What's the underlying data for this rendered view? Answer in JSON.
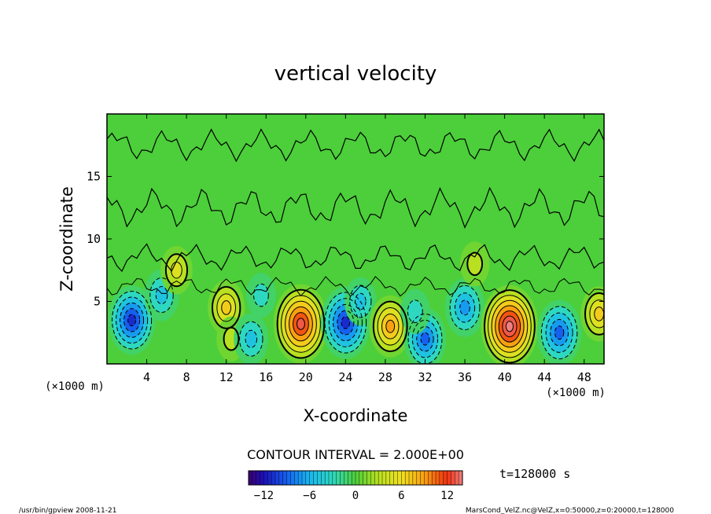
{
  "chart_data": {
    "type": "heatmap",
    "title": "vertical velocity",
    "xlabel": "X-coordinate",
    "ylabel": "Z-coordinate",
    "x_unit_left": "(×1000 m)",
    "x_unit_right": "(×1000 m)",
    "xlim": [
      0,
      50
    ],
    "ylim": [
      0,
      20
    ],
    "x_ticks": [
      4,
      8,
      12,
      16,
      20,
      24,
      28,
      32,
      36,
      40,
      44,
      48
    ],
    "y_ticks": [
      5,
      10,
      15
    ],
    "contour_interval_label": "CONTOUR INTERVAL = 2.000E+00",
    "time_label": "t=128000 s",
    "colorbar": {
      "min": -14,
      "max": 14,
      "tick_values": [
        -12,
        -6,
        0,
        6,
        12
      ],
      "tick_labels": [
        "−12",
        "−6",
        "0",
        "6",
        "12"
      ]
    },
    "cells": [
      {
        "x": 2.5,
        "z": 3.5,
        "value": -10
      },
      {
        "x": 5.5,
        "z": 5.5,
        "value": -5
      },
      {
        "x": 7.0,
        "z": 7.5,
        "value": 4
      },
      {
        "x": 12.0,
        "z": 4.5,
        "value": 6
      },
      {
        "x": 12.5,
        "z": 2.0,
        "value": 3
      },
      {
        "x": 14.5,
        "z": 2.0,
        "value": -5
      },
      {
        "x": 15.5,
        "z": 5.5,
        "value": -3
      },
      {
        "x": 19.5,
        "z": 3.2,
        "value": 13
      },
      {
        "x": 24.0,
        "z": 3.3,
        "value": -11
      },
      {
        "x": 25.5,
        "z": 5.0,
        "value": -4
      },
      {
        "x": 28.5,
        "z": 3.0,
        "value": 8
      },
      {
        "x": 32.0,
        "z": 2.0,
        "value": -8
      },
      {
        "x": 31.0,
        "z": 4.2,
        "value": -3
      },
      {
        "x": 36.0,
        "z": 4.5,
        "value": -7
      },
      {
        "x": 40.5,
        "z": 3.0,
        "value": 14
      },
      {
        "x": 45.5,
        "z": 2.5,
        "value": -9
      },
      {
        "x": 49.5,
        "z": 4.0,
        "value": 6
      },
      {
        "x": 37.0,
        "z": 8.0,
        "value": 3
      }
    ]
  },
  "footer": {
    "left": "/usr/bin/gpview   2008-11-21",
    "right": "MarsCond_VelZ.nc@VelZ,x=0:50000,z=0:20000,t=128000"
  },
  "colors": {
    "background_field": "#4ccf3a",
    "contour": "#000000"
  }
}
